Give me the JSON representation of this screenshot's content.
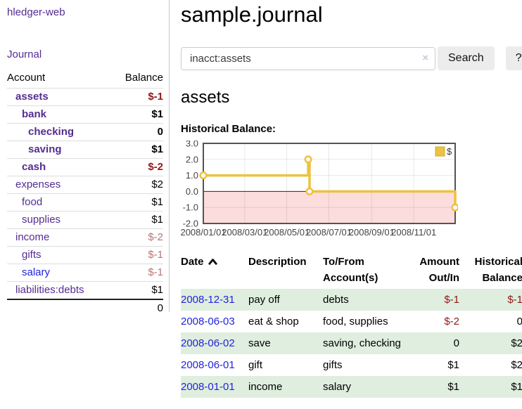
{
  "sidebar": {
    "brand": "hledger-web",
    "nav": {
      "journal": "Journal"
    },
    "accounts": {
      "header": {
        "account": "Account",
        "balance": "Balance"
      },
      "rows": [
        {
          "name": "assets",
          "depth": 1,
          "bold": true,
          "balance": "$-1",
          "negative": "strong",
          "link_color": "purple"
        },
        {
          "name": "bank",
          "depth": 2,
          "bold": true,
          "balance": "$1",
          "negative": null,
          "link_color": "purple"
        },
        {
          "name": "checking",
          "depth": 3,
          "bold": true,
          "balance": "0",
          "negative": null,
          "link_color": "purple"
        },
        {
          "name": "saving",
          "depth": 3,
          "bold": true,
          "balance": "$1",
          "negative": null,
          "link_color": "purple"
        },
        {
          "name": "cash",
          "depth": 2,
          "bold": true,
          "balance": "$-2",
          "negative": "strong",
          "link_color": "purple"
        },
        {
          "name": "expenses",
          "depth": 1,
          "bold": false,
          "balance": "$2",
          "negative": null,
          "link_color": "purple"
        },
        {
          "name": "food",
          "depth": 2,
          "bold": false,
          "balance": "$1",
          "negative": null,
          "link_color": "purple"
        },
        {
          "name": "supplies",
          "depth": 2,
          "bold": false,
          "balance": "$1",
          "negative": null,
          "link_color": "purple"
        },
        {
          "name": "income",
          "depth": 1,
          "bold": false,
          "balance": "$-2",
          "negative": "soft",
          "link_color": "purple"
        },
        {
          "name": "gifts",
          "depth": 2,
          "bold": false,
          "balance": "$-1",
          "negative": "soft",
          "link_color": "purple"
        },
        {
          "name": "salary",
          "depth": 2,
          "bold": false,
          "balance": "$-1",
          "negative": "soft",
          "link_color": "blue"
        },
        {
          "name": "liabilities:debts",
          "depth": 1,
          "bold": false,
          "balance": "$1",
          "negative": null,
          "link_color": "purple"
        }
      ],
      "total": "0"
    }
  },
  "main": {
    "title": "sample.journal",
    "search": {
      "value": "inacct:assets",
      "clear_icon": "×",
      "search_label": "Search",
      "help_label": "?"
    },
    "account_heading": "assets",
    "chart_title": "Historical Balance:"
  },
  "chart_data": {
    "type": "line",
    "step": true,
    "title": "Historical Balance",
    "series": [
      {
        "name": "$",
        "color": "#edc240",
        "points": [
          [
            "2008-01-01",
            1
          ],
          [
            "2008-06-01",
            2
          ],
          [
            "2008-06-03",
            0
          ],
          [
            "2008-12-31",
            -1
          ]
        ]
      }
    ],
    "xlim": [
      "2008-01-01",
      "2008-12-31"
    ],
    "ylim": [
      -2,
      3
    ],
    "yticks": {
      "values": [
        3,
        2,
        1,
        0,
        -1,
        -2
      ],
      "labels": [
        "3.0",
        "2.0",
        "1.0",
        "0.0",
        "-1.0",
        "-2.0"
      ]
    },
    "xticks": {
      "dates": [
        "2008-01-01",
        "2008-03-01",
        "2008-05-01",
        "2008-07-01",
        "2008-09-01",
        "2008-11-01"
      ],
      "labels": [
        "2008/01/01",
        "2008/03/01",
        "2008/05/01",
        "2008/07/01",
        "2008/09/01",
        "2008/11/01"
      ]
    },
    "legend": {
      "label": "$",
      "position": "top-right"
    },
    "grid": true,
    "negative_region_color": "#fcdddd",
    "zero_line_color": "#8b0000",
    "border_color": "#545454"
  },
  "register": {
    "headers": [
      "Date",
      "Description",
      "To/From Account(s)",
      "Amount Out/In",
      "Historical Balance"
    ],
    "sort": {
      "column": "Date",
      "direction": "ascending"
    },
    "rows": [
      {
        "date": "2008-12-31",
        "description": "pay off",
        "accounts": "debts",
        "amount": "$-1",
        "amount_negative": true,
        "balance": "$-1",
        "balance_negative": true
      },
      {
        "date": "2008-06-03",
        "description": "eat & shop",
        "accounts": "food, supplies",
        "amount": "$-2",
        "amount_negative": true,
        "balance": "0",
        "balance_negative": false
      },
      {
        "date": "2008-06-02",
        "description": "save",
        "accounts": "saving, checking",
        "amount": "0",
        "amount_negative": false,
        "balance": "$2",
        "balance_negative": false
      },
      {
        "date": "2008-06-01",
        "description": "gift",
        "accounts": "gifts",
        "amount": "$1",
        "amount_negative": false,
        "balance": "$2",
        "balance_negative": false
      },
      {
        "date": "2008-01-01",
        "description": "income",
        "accounts": "salary",
        "amount": "$1",
        "amount_negative": false,
        "balance": "$1",
        "balance_negative": false
      }
    ]
  }
}
